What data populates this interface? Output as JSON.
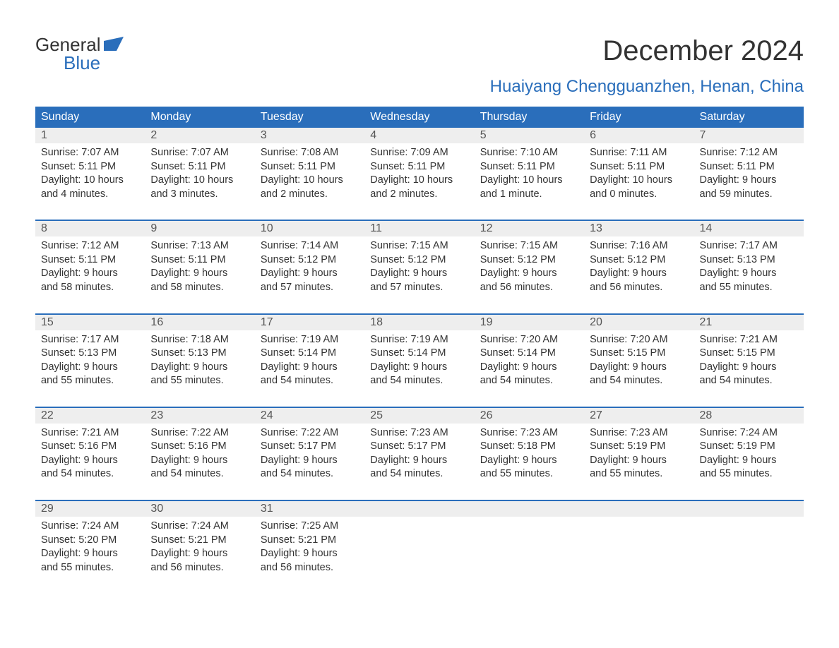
{
  "logo": {
    "line1": "General",
    "line2": "Blue",
    "brand_color": "#2a6ebb"
  },
  "title": "December 2024",
  "location": "Huaiyang Chengguanzhen, Henan, China",
  "colors": {
    "header_bg": "#2a6ebb",
    "header_text": "#ffffff",
    "daynum_bg": "#eeeeee",
    "week_border": "#2a6ebb",
    "body_text": "#333333",
    "background": "#ffffff"
  },
  "typography": {
    "title_fontsize": 40,
    "location_fontsize": 24,
    "dayheader_fontsize": 16,
    "cell_fontsize": 14.5
  },
  "day_names": [
    "Sunday",
    "Monday",
    "Tuesday",
    "Wednesday",
    "Thursday",
    "Friday",
    "Saturday"
  ],
  "weeks": [
    [
      {
        "n": "1",
        "sunrise": "Sunrise: 7:07 AM",
        "sunset": "Sunset: 5:11 PM",
        "d1": "Daylight: 10 hours",
        "d2": "and 4 minutes."
      },
      {
        "n": "2",
        "sunrise": "Sunrise: 7:07 AM",
        "sunset": "Sunset: 5:11 PM",
        "d1": "Daylight: 10 hours",
        "d2": "and 3 minutes."
      },
      {
        "n": "3",
        "sunrise": "Sunrise: 7:08 AM",
        "sunset": "Sunset: 5:11 PM",
        "d1": "Daylight: 10 hours",
        "d2": "and 2 minutes."
      },
      {
        "n": "4",
        "sunrise": "Sunrise: 7:09 AM",
        "sunset": "Sunset: 5:11 PM",
        "d1": "Daylight: 10 hours",
        "d2": "and 2 minutes."
      },
      {
        "n": "5",
        "sunrise": "Sunrise: 7:10 AM",
        "sunset": "Sunset: 5:11 PM",
        "d1": "Daylight: 10 hours",
        "d2": "and 1 minute."
      },
      {
        "n": "6",
        "sunrise": "Sunrise: 7:11 AM",
        "sunset": "Sunset: 5:11 PM",
        "d1": "Daylight: 10 hours",
        "d2": "and 0 minutes."
      },
      {
        "n": "7",
        "sunrise": "Sunrise: 7:12 AM",
        "sunset": "Sunset: 5:11 PM",
        "d1": "Daylight: 9 hours",
        "d2": "and 59 minutes."
      }
    ],
    [
      {
        "n": "8",
        "sunrise": "Sunrise: 7:12 AM",
        "sunset": "Sunset: 5:11 PM",
        "d1": "Daylight: 9 hours",
        "d2": "and 58 minutes."
      },
      {
        "n": "9",
        "sunrise": "Sunrise: 7:13 AM",
        "sunset": "Sunset: 5:11 PM",
        "d1": "Daylight: 9 hours",
        "d2": "and 58 minutes."
      },
      {
        "n": "10",
        "sunrise": "Sunrise: 7:14 AM",
        "sunset": "Sunset: 5:12 PM",
        "d1": "Daylight: 9 hours",
        "d2": "and 57 minutes."
      },
      {
        "n": "11",
        "sunrise": "Sunrise: 7:15 AM",
        "sunset": "Sunset: 5:12 PM",
        "d1": "Daylight: 9 hours",
        "d2": "and 57 minutes."
      },
      {
        "n": "12",
        "sunrise": "Sunrise: 7:15 AM",
        "sunset": "Sunset: 5:12 PM",
        "d1": "Daylight: 9 hours",
        "d2": "and 56 minutes."
      },
      {
        "n": "13",
        "sunrise": "Sunrise: 7:16 AM",
        "sunset": "Sunset: 5:12 PM",
        "d1": "Daylight: 9 hours",
        "d2": "and 56 minutes."
      },
      {
        "n": "14",
        "sunrise": "Sunrise: 7:17 AM",
        "sunset": "Sunset: 5:13 PM",
        "d1": "Daylight: 9 hours",
        "d2": "and 55 minutes."
      }
    ],
    [
      {
        "n": "15",
        "sunrise": "Sunrise: 7:17 AM",
        "sunset": "Sunset: 5:13 PM",
        "d1": "Daylight: 9 hours",
        "d2": "and 55 minutes."
      },
      {
        "n": "16",
        "sunrise": "Sunrise: 7:18 AM",
        "sunset": "Sunset: 5:13 PM",
        "d1": "Daylight: 9 hours",
        "d2": "and 55 minutes."
      },
      {
        "n": "17",
        "sunrise": "Sunrise: 7:19 AM",
        "sunset": "Sunset: 5:14 PM",
        "d1": "Daylight: 9 hours",
        "d2": "and 54 minutes."
      },
      {
        "n": "18",
        "sunrise": "Sunrise: 7:19 AM",
        "sunset": "Sunset: 5:14 PM",
        "d1": "Daylight: 9 hours",
        "d2": "and 54 minutes."
      },
      {
        "n": "19",
        "sunrise": "Sunrise: 7:20 AM",
        "sunset": "Sunset: 5:14 PM",
        "d1": "Daylight: 9 hours",
        "d2": "and 54 minutes."
      },
      {
        "n": "20",
        "sunrise": "Sunrise: 7:20 AM",
        "sunset": "Sunset: 5:15 PM",
        "d1": "Daylight: 9 hours",
        "d2": "and 54 minutes."
      },
      {
        "n": "21",
        "sunrise": "Sunrise: 7:21 AM",
        "sunset": "Sunset: 5:15 PM",
        "d1": "Daylight: 9 hours",
        "d2": "and 54 minutes."
      }
    ],
    [
      {
        "n": "22",
        "sunrise": "Sunrise: 7:21 AM",
        "sunset": "Sunset: 5:16 PM",
        "d1": "Daylight: 9 hours",
        "d2": "and 54 minutes."
      },
      {
        "n": "23",
        "sunrise": "Sunrise: 7:22 AM",
        "sunset": "Sunset: 5:16 PM",
        "d1": "Daylight: 9 hours",
        "d2": "and 54 minutes."
      },
      {
        "n": "24",
        "sunrise": "Sunrise: 7:22 AM",
        "sunset": "Sunset: 5:17 PM",
        "d1": "Daylight: 9 hours",
        "d2": "and 54 minutes."
      },
      {
        "n": "25",
        "sunrise": "Sunrise: 7:23 AM",
        "sunset": "Sunset: 5:17 PM",
        "d1": "Daylight: 9 hours",
        "d2": "and 54 minutes."
      },
      {
        "n": "26",
        "sunrise": "Sunrise: 7:23 AM",
        "sunset": "Sunset: 5:18 PM",
        "d1": "Daylight: 9 hours",
        "d2": "and 55 minutes."
      },
      {
        "n": "27",
        "sunrise": "Sunrise: 7:23 AM",
        "sunset": "Sunset: 5:19 PM",
        "d1": "Daylight: 9 hours",
        "d2": "and 55 minutes."
      },
      {
        "n": "28",
        "sunrise": "Sunrise: 7:24 AM",
        "sunset": "Sunset: 5:19 PM",
        "d1": "Daylight: 9 hours",
        "d2": "and 55 minutes."
      }
    ],
    [
      {
        "n": "29",
        "sunrise": "Sunrise: 7:24 AM",
        "sunset": "Sunset: 5:20 PM",
        "d1": "Daylight: 9 hours",
        "d2": "and 55 minutes."
      },
      {
        "n": "30",
        "sunrise": "Sunrise: 7:24 AM",
        "sunset": "Sunset: 5:21 PM",
        "d1": "Daylight: 9 hours",
        "d2": "and 56 minutes."
      },
      {
        "n": "31",
        "sunrise": "Sunrise: 7:25 AM",
        "sunset": "Sunset: 5:21 PM",
        "d1": "Daylight: 9 hours",
        "d2": "and 56 minutes."
      },
      {
        "n": "",
        "sunrise": "",
        "sunset": "",
        "d1": "",
        "d2": ""
      },
      {
        "n": "",
        "sunrise": "",
        "sunset": "",
        "d1": "",
        "d2": ""
      },
      {
        "n": "",
        "sunrise": "",
        "sunset": "",
        "d1": "",
        "d2": ""
      },
      {
        "n": "",
        "sunrise": "",
        "sunset": "",
        "d1": "",
        "d2": ""
      }
    ]
  ]
}
